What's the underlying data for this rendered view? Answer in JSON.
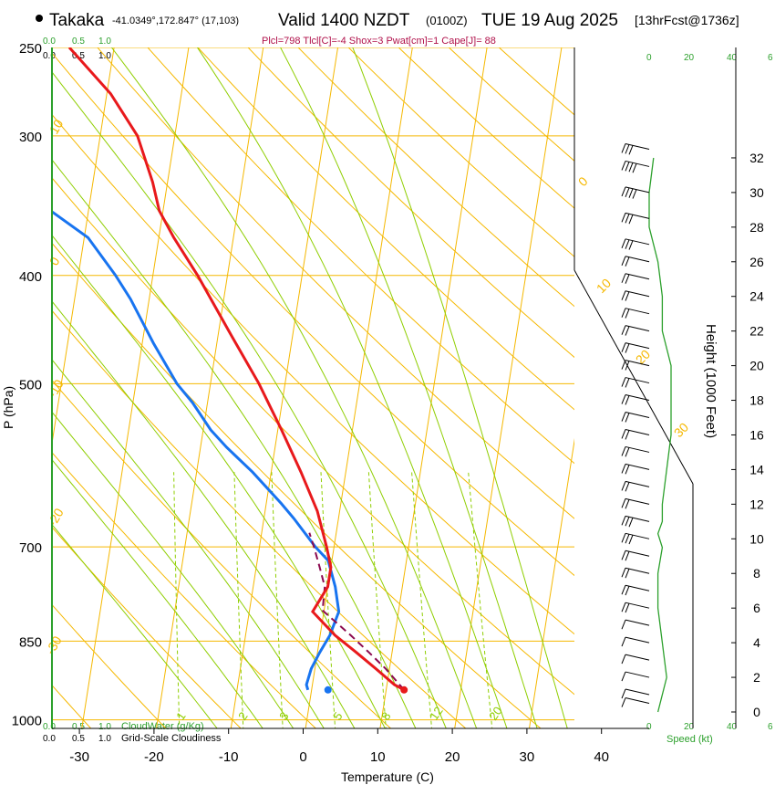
{
  "header": {
    "station": "Takaka",
    "coords": "-41.0349°,172.847° (17,103)",
    "valid": "Valid 1400 NZDT",
    "utc": "(0100Z)",
    "date": "TUE 19 Aug 2025",
    "fcst": "[13hrFcst@1736z]",
    "indices": "Plcl=798 Tlcl[C]=-4 Shox=3 Pwat[cm]=1 Cape[J]= 88"
  },
  "colors": {
    "isotherm": "#f5b800",
    "dry_adiabat": "#f5b800",
    "moist_adiabat": "#8fce00",
    "mixing_ratio": "#8fce00",
    "temperature": "#e8191c",
    "dewpoint": "#1874f0",
    "parcel": "#8b0a50",
    "cloud": "#2ca02c",
    "indices_text": "#b0104a"
  },
  "chart_data": {
    "type": "line",
    "title": "Valid 1400 NZDT (0100Z) TUE 19 Aug 2025",
    "xlabel": "Temperature (C)",
    "ylabel": "P (hPa)",
    "xlim": [
      -35,
      45
    ],
    "ylim_hpa": [
      1000,
      250
    ],
    "x_ticks": [
      -30,
      -20,
      -10,
      0,
      10,
      20,
      30,
      40
    ],
    "p_ticks": [
      250,
      300,
      400,
      500,
      700,
      850,
      1000
    ],
    "right_axis_label": "Height (1000 Feet)",
    "height_ticks_kft": [
      0,
      2,
      4,
      6,
      8,
      10,
      12,
      14,
      16,
      18,
      20,
      22,
      24,
      26,
      28,
      30,
      32
    ],
    "isotherm_labels": [
      -30,
      -20,
      -10,
      0,
      10,
      20,
      30
    ],
    "isotherm_label_values": [
      "10",
      "0",
      "-10",
      "-20",
      "-30",
      "0",
      "10",
      "20",
      "30"
    ],
    "mixing_ratio_labels": [
      "1",
      "2",
      "3",
      "5",
      "8",
      "12",
      "20"
    ],
    "cloud_scale_top": [
      "0.0",
      "0.5",
      "1.0"
    ],
    "cloud_scale_bottom": [
      "0.0",
      "0.5",
      "1.0"
    ],
    "cloudwater_label": "CloudWater (g/Kg)",
    "cloudiness_label": "Grid-Scale Cloudiness",
    "speed_label": "Speed (kt)",
    "speed_scale": [
      "0",
      "20",
      "40",
      "6"
    ],
    "temperature": {
      "p": [
        940,
        930,
        900,
        870,
        840,
        800,
        760,
        730,
        700,
        650,
        600,
        550,
        500,
        450,
        400,
        370,
        350,
        330,
        300,
        275,
        250
      ],
      "t": [
        12.4,
        11.0,
        8.2,
        5.2,
        2.0,
        -1.5,
        0.0,
        0.0,
        -1.0,
        -3.0,
        -6.0,
        -9.5,
        -13.5,
        -18.5,
        -24.0,
        -28.0,
        -30.5,
        -32.0,
        -35.0,
        -39.5,
        -46.0
      ]
    },
    "dewpoint": {
      "p": [
        940,
        930,
        900,
        870,
        840,
        800,
        760,
        720,
        700,
        660,
        640,
        600,
        570,
        550,
        520,
        500,
        460,
        420,
        400,
        370,
        340,
        300,
        250
      ],
      "td": [
        -0.5,
        -0.8,
        -0.5,
        0.3,
        1.3,
        2.0,
        1.0,
        -0.5,
        -2.5,
        -6.0,
        -8.0,
        -12.5,
        -16.5,
        -19.0,
        -22.0,
        -24.5,
        -28.5,
        -32.5,
        -35.0,
        -39.5,
        -48.0,
        -61.0,
        -70.0
      ]
    },
    "parcel": {
      "p": [
        940,
        900,
        870,
        840,
        798,
        760,
        730,
        700,
        680
      ],
      "t": [
        12.4,
        9.5,
        6.9,
        4.1,
        -0.2,
        -0.4,
        -1.5,
        -2.7,
        -3.6
      ]
    },
    "surface_dewpoint_marker": {
      "p": 940,
      "td": 2.2
    },
    "wind_barbs_kft": [
      32.5,
      31.5,
      30,
      28.5,
      27,
      26,
      25,
      24,
      23,
      22,
      21,
      20,
      19,
      18,
      17,
      16,
      15,
      14,
      13,
      12,
      11,
      10,
      9,
      8,
      7,
      6,
      5,
      4,
      3,
      2,
      1,
      0.5
    ],
    "wind_speed_kt": [
      30,
      35,
      35,
      30,
      25,
      20,
      18,
      16,
      15,
      15,
      15,
      15,
      15,
      15,
      20,
      20,
      20,
      20,
      20,
      20,
      25,
      25,
      20,
      20,
      15,
      15,
      10,
      10,
      10,
      10,
      10,
      10
    ],
    "cloud_water_kft": [
      0,
      2,
      4,
      6,
      8,
      9.5,
      10.3,
      11,
      12,
      14,
      16,
      18,
      20,
      22,
      24,
      26,
      28,
      30,
      32
    ],
    "cloud_water_speed": [
      2,
      4,
      3,
      2,
      2,
      3,
      2,
      3,
      3,
      4,
      5,
      5,
      5,
      3,
      3,
      2,
      0,
      0,
      1
    ]
  }
}
